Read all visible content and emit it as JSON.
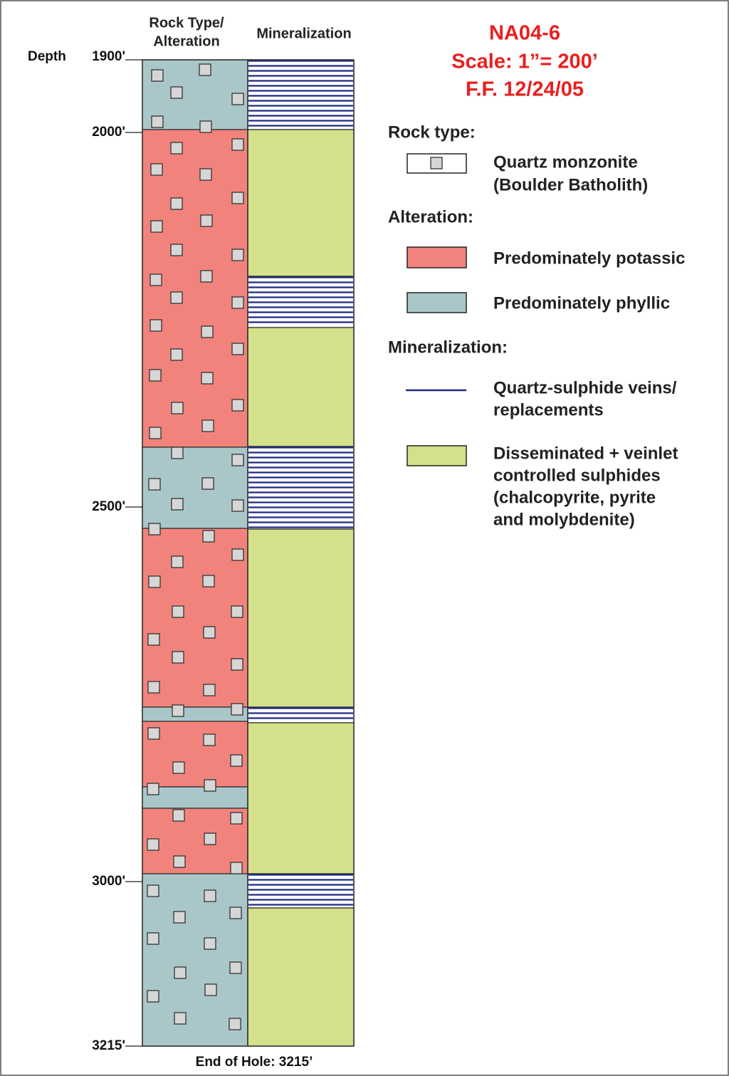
{
  "header": {
    "title_lines": [
      "NA04-6",
      "Scale: 1”= 200’",
      "F.F. 12/24/05"
    ]
  },
  "columns": {
    "rock_type": [
      "Rock Type/",
      "Alteration"
    ],
    "mineralization": "Mineralization"
  },
  "depth": {
    "prefix": "Depth",
    "ticks": [
      "1900'",
      "2000'",
      "2500'",
      "3000'",
      "3215'"
    ]
  },
  "footer": "End of Hole: 3215’",
  "legend": {
    "rock_type": {
      "heading": "Rock type:",
      "items": [
        [
          "Quartz monzonite",
          "(Boulder Batholith)"
        ]
      ]
    },
    "alteration": {
      "heading": "Alteration:",
      "items": [
        "Predominately potassic",
        "Predominately phyllic"
      ]
    },
    "mineralization": {
      "heading": "Mineralization:",
      "items": [
        [
          "Quartz-sulphide veins/",
          "replacements"
        ],
        [
          "Disseminated + veinlet",
          "controlled sulphides",
          "(chalcopyrite, pyrite",
          "and molybdenite)"
        ]
      ]
    }
  }
}
